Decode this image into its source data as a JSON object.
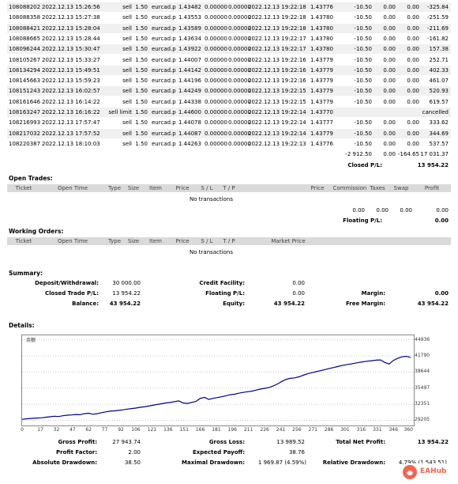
{
  "history_rows": [
    {
      "ticket": "108088202",
      "open_time": "2022.12.13 15:26:56",
      "type": "sell",
      "size": "1.50",
      "item": "eurcad.p",
      "price": "1.43482",
      "sl": "0.00000",
      "tp": "0.00000",
      "close_time": "2022.12.13 19:22:18",
      "close_price": "1.43776",
      "commission": "-10.50",
      "taxes": "0.00",
      "swap": "0.00",
      "profit": "-325.84"
    },
    {
      "ticket": "108088358",
      "open_time": "2022.12.13 15:27:38",
      "type": "sell",
      "size": "1.50",
      "item": "eurcad.p",
      "price": "1.43553",
      "sl": "0.00000",
      "tp": "0.00000",
      "close_time": "2022.12.13 19:22:18",
      "close_price": "1.43780",
      "commission": "-10.50",
      "taxes": "0.00",
      "swap": "0.00",
      "profit": "-251.59"
    },
    {
      "ticket": "108088421",
      "open_time": "2022.12.13 15:28:04",
      "type": "sell",
      "size": "1.50",
      "item": "eurcad.p",
      "price": "1.43589",
      "sl": "0.00000",
      "tp": "0.00000",
      "close_time": "2022.12.13 19:22:18",
      "close_price": "1.43780",
      "commission": "-10.50",
      "taxes": "0.00",
      "swap": "0.00",
      "profit": "-211.69"
    },
    {
      "ticket": "108088665",
      "open_time": "2022.12.13 15:28:44",
      "type": "sell",
      "size": "1.50",
      "item": "eurcad.p",
      "price": "1.43634",
      "sl": "0.00000",
      "tp": "0.00000",
      "close_time": "2022.12.13 19:22:17",
      "close_price": "1.43780",
      "commission": "-10.50",
      "taxes": "0.00",
      "swap": "0.00",
      "profit": "-161.82"
    },
    {
      "ticket": "108096244",
      "open_time": "2022.12.13 15:30:47",
      "type": "sell",
      "size": "1.50",
      "item": "eurcad.p",
      "price": "1.43922",
      "sl": "0.00000",
      "tp": "0.00000",
      "close_time": "2022.12.13 19:22:17",
      "close_price": "1.43780",
      "commission": "-10.50",
      "taxes": "0.00",
      "swap": "0.00",
      "profit": "157.38"
    },
    {
      "ticket": "108105267",
      "open_time": "2022.12.13 15:33:27",
      "type": "sell",
      "size": "1.50",
      "item": "eurcad.p",
      "price": "1.44007",
      "sl": "0.00000",
      "tp": "0.00000",
      "close_time": "2022.12.13 19:22:16",
      "close_price": "1.43779",
      "commission": "-10.50",
      "taxes": "0.00",
      "swap": "0.00",
      "profit": "252.71"
    },
    {
      "ticket": "108134294",
      "open_time": "2022.12.13 15:49:51",
      "type": "sell",
      "size": "1.50",
      "item": "eurcad.p",
      "price": "1.44142",
      "sl": "0.00000",
      "tp": "0.00000",
      "close_time": "2022.12.13 19:22:16",
      "close_price": "1.43779",
      "commission": "-10.50",
      "taxes": "0.00",
      "swap": "0.00",
      "profit": "402.33"
    },
    {
      "ticket": "108145663",
      "open_time": "2022.12.13 15:59:23",
      "type": "sell",
      "size": "1.50",
      "item": "eurcad.p",
      "price": "1.44196",
      "sl": "0.00000",
      "tp": "0.00000",
      "close_time": "2022.12.13 19:22:16",
      "close_price": "1.43779",
      "commission": "-10.50",
      "taxes": "0.00",
      "swap": "0.00",
      "profit": "461.07"
    },
    {
      "ticket": "108151243",
      "open_time": "2022.12.13 16:02:57",
      "type": "sell",
      "size": "1.50",
      "item": "eurcad.p",
      "price": "1.44249",
      "sl": "0.00000",
      "tp": "0.00000",
      "close_time": "2022.12.13 19:22:15",
      "close_price": "1.43779",
      "commission": "-10.50",
      "taxes": "0.00",
      "swap": "0.00",
      "profit": "520.93"
    },
    {
      "ticket": "108161646",
      "open_time": "2022.12.13 16:14:22",
      "type": "sell",
      "size": "1.50",
      "item": "eurcad.p",
      "price": "1.44338",
      "sl": "0.00000",
      "tp": "0.00000",
      "close_time": "2022.12.13 19:22:15",
      "close_price": "1.43779",
      "commission": "-10.50",
      "taxes": "0.00",
      "swap": "0.00",
      "profit": "619.57"
    },
    {
      "ticket": "108163247",
      "open_time": "2022.12.13 16:16:22",
      "type": "sell limit",
      "size": "1.50",
      "item": "eurcad.p",
      "price": "1.44600",
      "sl": "0.00000",
      "tp": "0.00000",
      "close_time": "2022.12.13 19:22:14",
      "close_price": "1.43770",
      "commission": "",
      "taxes": "",
      "swap": "",
      "profit": "cancelled"
    },
    {
      "ticket": "108216993",
      "open_time": "2022.12.13 17:57:47",
      "type": "sell",
      "size": "1.50",
      "item": "eurcad.p",
      "price": "1.44078",
      "sl": "0.00000",
      "tp": "0.00000",
      "close_time": "2022.12.13 19:22:14",
      "close_price": "1.43777",
      "commission": "-10.50",
      "taxes": "0.00",
      "swap": "0.00",
      "profit": "333.62"
    },
    {
      "ticket": "108217032",
      "open_time": "2022.12.13 17:57:52",
      "type": "sell",
      "size": "1.50",
      "item": "eurcad.p",
      "price": "1.44087",
      "sl": "0.00000",
      "tp": "0.00000",
      "close_time": "2022.12.13 19:22:14",
      "close_price": "1.43779",
      "commission": "-10.50",
      "taxes": "0.00",
      "swap": "0.00",
      "profit": "344.69"
    },
    {
      "ticket": "108220387",
      "open_time": "2022.12.13 18:10:03",
      "type": "sell",
      "size": "1.50",
      "item": "eurcad.p",
      "price": "1.44263",
      "sl": "0.00000",
      "tp": "0.00000",
      "close_time": "2022.12.13 19:22:13",
      "close_price": "1.43776",
      "commission": "-10.50",
      "taxes": "0.00",
      "swap": "0.00",
      "profit": "537.57"
    }
  ],
  "history_totals": {
    "commission": "-2 912.50",
    "taxes": "0.00",
    "swap": "-164.65",
    "profit": "17 031.37"
  },
  "closed_pl": {
    "label": "Closed P/L:",
    "value": "13 954.22"
  },
  "open_trades": {
    "title": "Open Trades:",
    "headers": {
      "ticket": "Ticket",
      "open_time": "Open Time",
      "type": "Type",
      "size": "Size",
      "item": "Item",
      "price": "Price",
      "sl": "S / L",
      "tp": "T / P",
      "price2": "Price",
      "commission": "Commission",
      "taxes": "Taxes",
      "swap": "Swap",
      "profit": "Profit"
    },
    "empty": "No transactions",
    "totals": {
      "commission": "0.00",
      "taxes": "0.00",
      "swap": "0.00",
      "profit": "0.00"
    },
    "floating_label": "Floating P/L:",
    "floating_value": "0.00"
  },
  "working_orders": {
    "title": "Working Orders:",
    "headers": {
      "ticket": "Ticket",
      "open_time": "Open Time",
      "type": "Type",
      "size": "Size",
      "item": "Item",
      "price": "Price",
      "sl": "S / L",
      "tp": "T / P",
      "market_price": "Market Price"
    },
    "empty": "No transactions"
  },
  "summary": {
    "title": "Summary:",
    "deposit_label": "Deposit/Withdrawal:",
    "deposit_value": "30 000.00",
    "credit_label": "Credit Facility:",
    "credit_value": "0.00",
    "closed_label": "Closed Trade P/L:",
    "closed_value": "13 954.22",
    "floating_label": "Floating P/L:",
    "floating_value": "0.00",
    "margin_label": "Margin:",
    "margin_value": "0.00",
    "balance_label": "Balance:",
    "balance_value": "43 954.22",
    "equity_label": "Equity:",
    "equity_value": "43 954.22",
    "free_margin_label": "Free Margin:",
    "free_margin_value": "43 954.22"
  },
  "details_title": "Details:",
  "chart_data": {
    "type": "line",
    "legend": "余额",
    "x_ticks": [
      0,
      17,
      32,
      47,
      62,
      77,
      92,
      106,
      121,
      136,
      151,
      166,
      181,
      196,
      211,
      226,
      241,
      256,
      271,
      286,
      301,
      316,
      331,
      346,
      360
    ],
    "y_ticks": [
      29205,
      32351,
      35497,
      38644,
      41790,
      44936
    ],
    "xlim": [
      0,
      365
    ],
    "ylim": [
      28200,
      45800
    ],
    "series": [
      {
        "name": "余额",
        "color": "#00008b",
        "x": [
          0,
          5,
          10,
          14,
          18,
          22,
          26,
          30,
          34,
          38,
          42,
          46,
          50,
          54,
          58,
          62,
          66,
          70,
          74,
          78,
          82,
          86,
          90,
          94,
          98,
          102,
          106,
          110,
          114,
          118,
          122,
          126,
          130,
          134,
          138,
          142,
          146,
          150,
          154,
          158,
          162,
          166,
          170,
          174,
          178,
          182,
          186,
          190,
          194,
          198,
          202,
          206,
          210,
          214,
          218,
          222,
          226,
          230,
          234,
          238,
          242,
          246,
          250,
          254,
          258,
          262,
          266,
          270,
          274,
          278,
          282,
          286,
          290,
          294,
          298,
          302,
          306,
          310,
          314,
          318,
          322,
          326,
          330,
          334,
          338,
          342,
          346,
          350,
          354,
          358,
          362
        ],
        "y": [
          29400,
          29520,
          29600,
          29650,
          29700,
          29800,
          29900,
          30000,
          29950,
          30100,
          30200,
          30250,
          30350,
          30300,
          30500,
          30600,
          30400,
          30500,
          30700,
          30850,
          31000,
          31050,
          31150,
          31250,
          31400,
          31500,
          31600,
          31750,
          31850,
          32000,
          32150,
          32300,
          32450,
          32600,
          32700,
          32850,
          33000,
          32600,
          32500,
          32700,
          32900,
          33500,
          33700,
          33300,
          33500,
          33650,
          33800,
          34000,
          34200,
          34300,
          34500,
          34650,
          34800,
          34900,
          35100,
          35300,
          35450,
          35600,
          35900,
          36300,
          36800,
          37200,
          37400,
          37500,
          37700,
          38000,
          38300,
          38500,
          38700,
          38900,
          39100,
          39300,
          39500,
          39700,
          39900,
          40050,
          40200,
          40350,
          40500,
          40650,
          40750,
          40850,
          40950,
          41000,
          40500,
          40200,
          40900,
          41300,
          41600,
          41700,
          41500
        ]
      }
    ]
  },
  "stats": {
    "gross_profit_label": "Gross Profit:",
    "gross_profit_value": "27 943.74",
    "gross_loss_label": "Gross Loss:",
    "gross_loss_value": "13 989.52",
    "net_profit_label": "Total Net Profit:",
    "net_profit_value": "13 954.22",
    "profit_factor_label": "Profit Factor:",
    "profit_factor_value": "2.00",
    "expected_payoff_label": "Expected Payoff:",
    "expected_payoff_value": "38.76",
    "abs_dd_label": "Absolute Drawdown:",
    "abs_dd_value": "38.50",
    "max_dd_label": "Maximal Drawdown:",
    "max_dd_value": "1 969.87 (4.59%)",
    "rel_dd_label": "Relative Drawdown:",
    "rel_dd_value": "4.79% (1 543.51)"
  },
  "watermark": "EAHub"
}
